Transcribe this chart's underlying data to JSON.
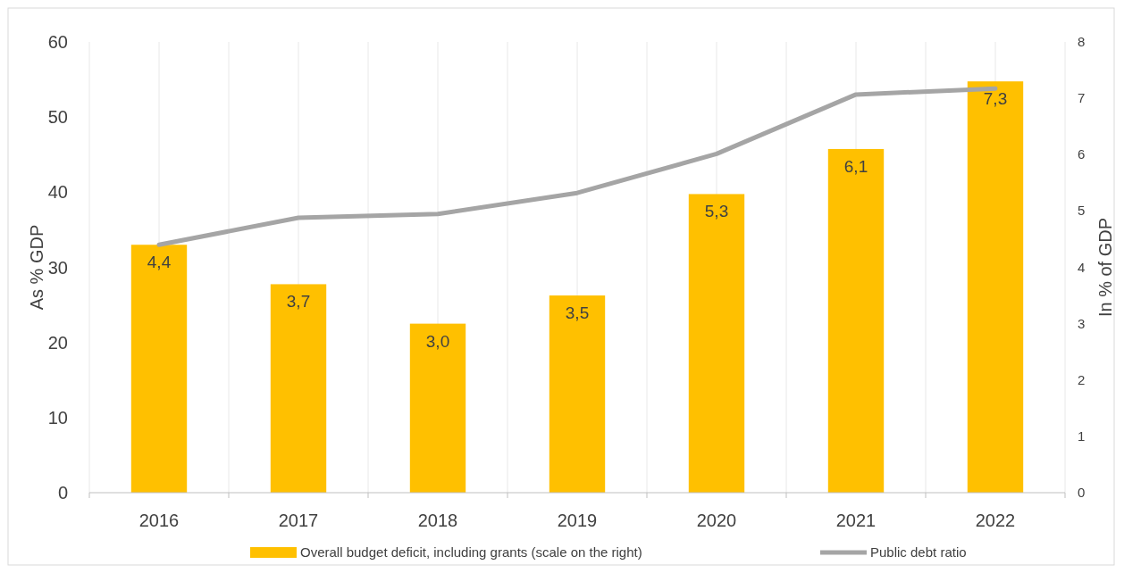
{
  "chart_data": {
    "type": "bar",
    "categories": [
      "2016",
      "2017",
      "2018",
      "2019",
      "2020",
      "2021",
      "2022"
    ],
    "ylabel": "As % GDP",
    "y2label": "In % of GDP",
    "ylim": [
      0,
      60
    ],
    "yticks": [
      0,
      10,
      20,
      30,
      40,
      50,
      60
    ],
    "y2lim": [
      0,
      8
    ],
    "y2ticks": [
      0,
      1,
      2,
      3,
      4,
      5,
      6,
      7,
      8
    ],
    "grid": "x",
    "legend": "bottom",
    "series": [
      {
        "name": "Overall budget deficit, including grants (scale on the right)",
        "axis": "y2",
        "color": "#ffc000",
        "values": [
          4.4,
          3.7,
          3.0,
          3.5,
          5.3,
          6.1,
          7.3
        ],
        "value_labels": [
          "4,4",
          "3,7",
          "3,0",
          "3,5",
          "5,3",
          "6,1",
          "7,3"
        ]
      },
      {
        "name": "Public debt ratio",
        "type": "line",
        "axis": "y",
        "color": "#a5a5a5",
        "values": [
          33.0,
          36.6,
          37.1,
          39.9,
          45.1,
          53.0,
          53.8
        ]
      }
    ]
  }
}
